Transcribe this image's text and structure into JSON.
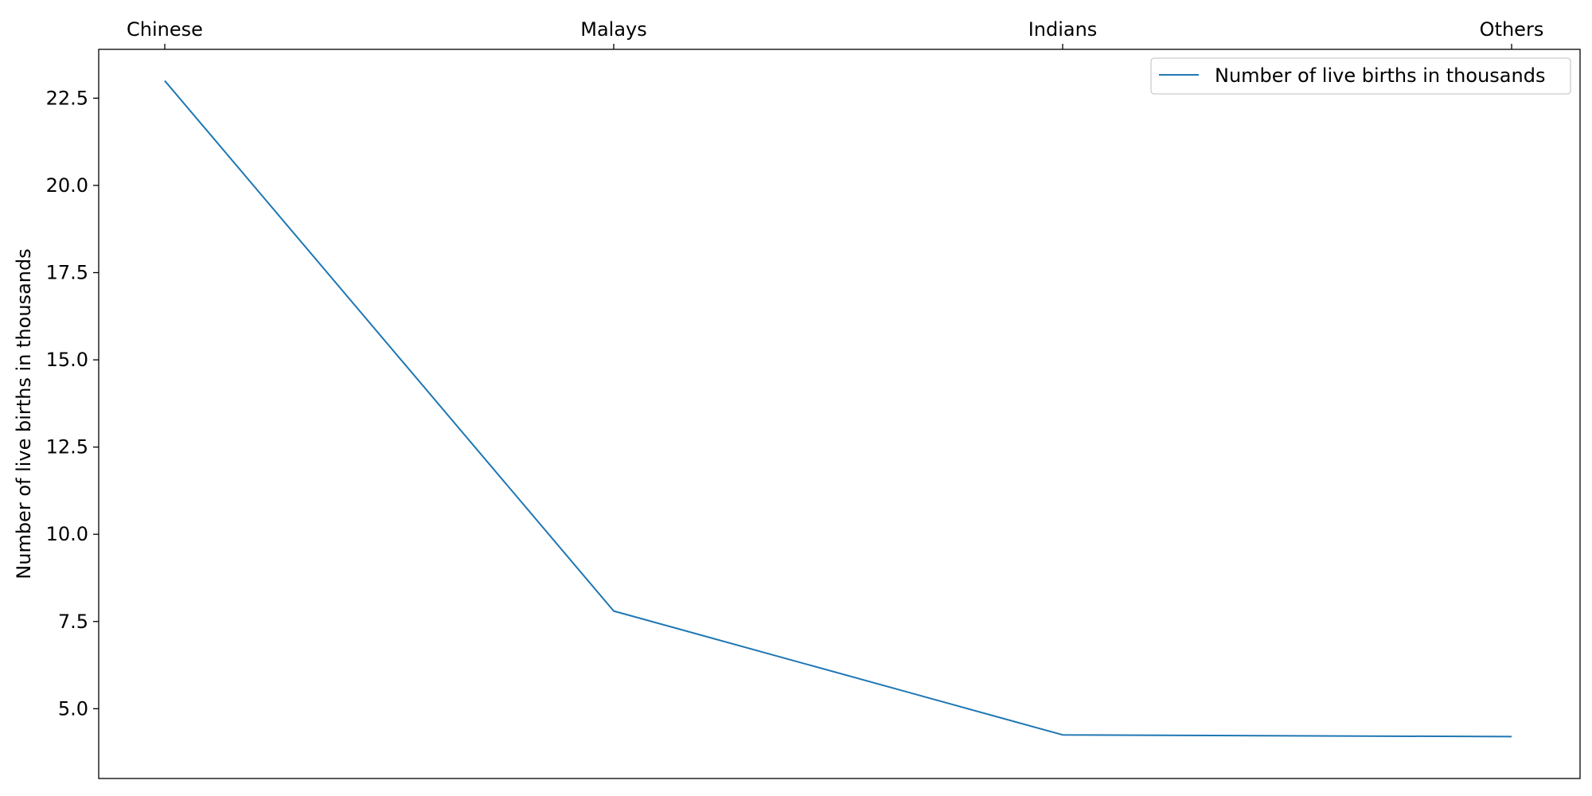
{
  "chart_data": {
    "type": "line",
    "categories": [
      "Chinese",
      "Malays",
      "Indians",
      "Others"
    ],
    "x_axis_position": "top",
    "series": [
      {
        "name": "Number of live births in thousands",
        "values": [
          23.0,
          7.8,
          4.25,
          4.2
        ],
        "color": "#1f77b4"
      }
    ],
    "title": "",
    "xlabel": "",
    "ylabel": "Number of live births in thousands",
    "ylim": [
      3.0,
      23.9
    ],
    "yticks": [
      5.0,
      7.5,
      10.0,
      12.5,
      15.0,
      17.5,
      20.0,
      22.5
    ],
    "ytick_labels": [
      "5.0",
      "7.5",
      "10.0",
      "12.5",
      "15.0",
      "17.5",
      "20.0",
      "22.5"
    ],
    "grid": false,
    "legend_position": "top-right"
  }
}
